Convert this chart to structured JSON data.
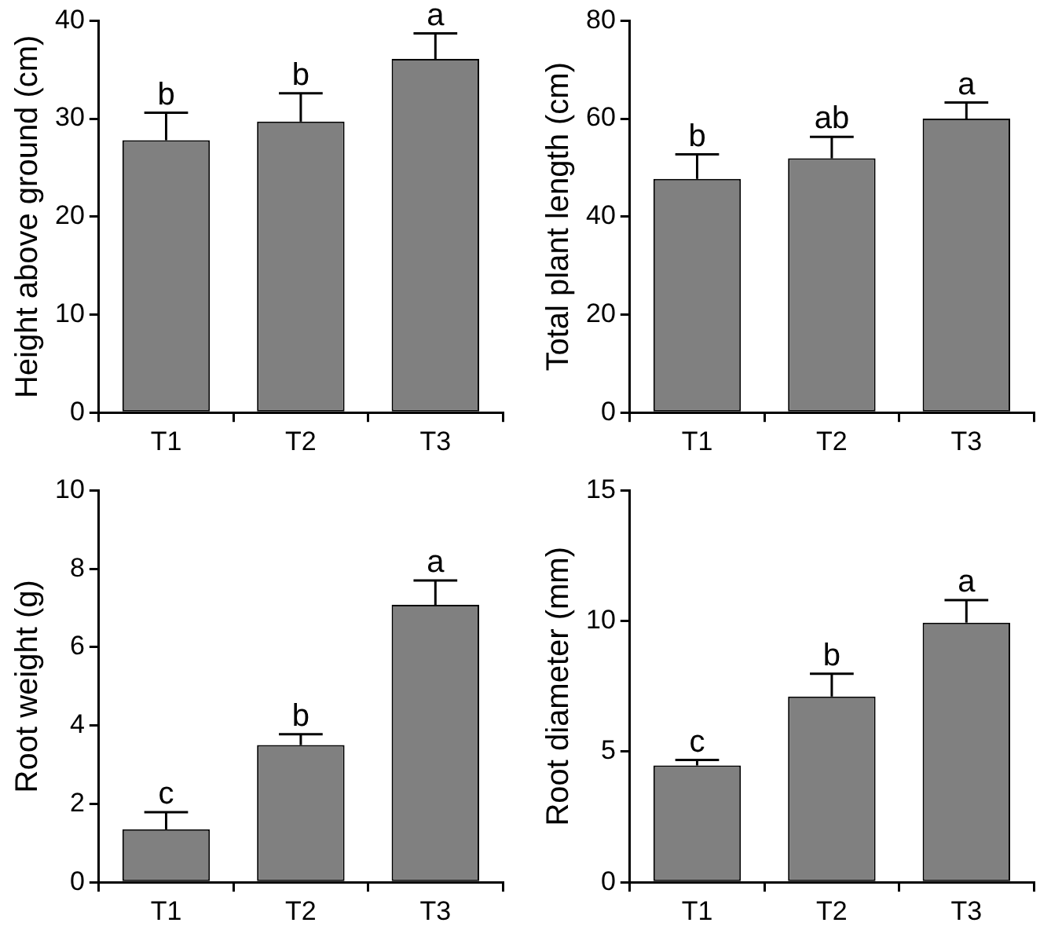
{
  "chart_data": [
    {
      "type": "bar",
      "ylabel": "Height above ground (cm)",
      "categories": [
        "T1",
        "T2",
        "T3"
      ],
      "values": [
        27.8,
        29.7,
        36.1
      ],
      "errors": [
        [
          27.8,
          30.6
        ],
        [
          29.7,
          32.6
        ],
        [
          36.1,
          38.7
        ]
      ],
      "color": "#808080",
      "ylim": [
        0,
        40
      ],
      "yticks": [
        0,
        10,
        20,
        30,
        40
      ],
      "grid": false,
      "legend": false,
      "annotations": [
        {
          "text": "b",
          "x": "T1",
          "y": 30.6
        },
        {
          "text": "b",
          "x": "T2",
          "y": 32.6
        },
        {
          "text": "a",
          "x": "T3",
          "y": 38.7
        }
      ]
    },
    {
      "type": "bar",
      "ylabel": "Total plant length (cm)",
      "categories": [
        "T1",
        "T2",
        "T3"
      ],
      "values": [
        47.7,
        51.9,
        60
      ],
      "errors": [
        [
          47.7,
          52.7
        ],
        [
          51.9,
          56.3
        ],
        [
          60,
          63.3
        ]
      ],
      "color": "#808080",
      "ylim": [
        0,
        80
      ],
      "yticks": [
        0,
        20,
        40,
        60,
        80
      ],
      "grid": false,
      "legend": false,
      "annotations": [
        {
          "text": "b",
          "x": "T1",
          "y": 52.7
        },
        {
          "text": "ab",
          "x": "T2",
          "y": 56.3
        },
        {
          "text": "a",
          "x": "T3",
          "y": 63.3
        }
      ]
    },
    {
      "type": "bar",
      "ylabel": "Root weight (g)",
      "categories": [
        "T1",
        "T2",
        "T3"
      ],
      "values": [
        1.35,
        3.5,
        7.08
      ],
      "errors": [
        [
          1.35,
          1.79
        ],
        [
          3.5,
          3.78
        ],
        [
          7.08,
          7.7
        ]
      ],
      "color": "#808080",
      "ylim": [
        0,
        10
      ],
      "yticks": [
        0,
        2,
        4,
        6,
        8,
        10
      ],
      "grid": false,
      "legend": false,
      "annotations": [
        {
          "text": "c",
          "x": "T1",
          "y": 1.79
        },
        {
          "text": "b",
          "x": "T2",
          "y": 3.78
        },
        {
          "text": "a",
          "x": "T3",
          "y": 7.7
        }
      ]
    },
    {
      "type": "bar",
      "ylabel": "Root diameter (mm)",
      "categories": [
        "T1",
        "T2",
        "T3"
      ],
      "values": [
        4.47,
        7.11,
        9.94
      ],
      "errors": [
        [
          4.47,
          4.68
        ],
        [
          7.11,
          7.98
        ],
        [
          9.94,
          10.8
        ]
      ],
      "color": "#808080",
      "ylim": [
        0,
        15
      ],
      "yticks": [
        0,
        5,
        10,
        15
      ],
      "grid": false,
      "legend": false,
      "annotations": [
        {
          "text": "c",
          "x": "T1",
          "y": 4.68
        },
        {
          "text": "b",
          "x": "T2",
          "y": 7.98
        },
        {
          "text": "a",
          "x": "T3",
          "y": 10.8
        }
      ]
    }
  ]
}
